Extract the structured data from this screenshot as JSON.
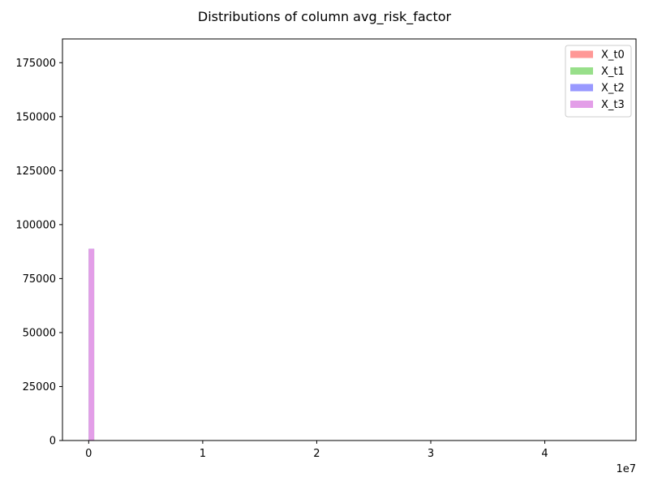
{
  "chart_data": {
    "type": "bar",
    "title": "Distributions of column avg_risk_factor",
    "xlabel": "",
    "ylabel": "",
    "x_offset_label": "1e7",
    "x_ticks": [
      0,
      1,
      2,
      3,
      4
    ],
    "x_tick_labels": [
      "0",
      "1",
      "2",
      "3",
      "4"
    ],
    "xlim": [
      -0.23,
      4.8
    ],
    "y_ticks": [
      0,
      25000,
      50000,
      75000,
      100000,
      125000,
      150000,
      175000
    ],
    "y_tick_labels": [
      "0",
      "25000",
      "50000",
      "75000",
      "100000",
      "125000",
      "150000",
      "175000"
    ],
    "ylim": [
      0,
      186000
    ],
    "grid": false,
    "legend_position": "top-right",
    "series": [
      {
        "name": "X_t0",
        "color": "#ff9896",
        "bins": [
          {
            "x0": 0.0,
            "x1": 0.048,
            "count": 88800
          }
        ]
      },
      {
        "name": "X_t1",
        "color": "#98df8a",
        "bins": [
          {
            "x0": 0.0,
            "x1": 0.048,
            "count": 88800
          }
        ]
      },
      {
        "name": "X_t2",
        "color": "#9999ff",
        "bins": [
          {
            "x0": 0.0,
            "x1": 0.048,
            "count": 88800
          }
        ]
      },
      {
        "name": "X_t3",
        "color": "#e39ee8",
        "bins": [
          {
            "x0": 0.0,
            "x1": 0.048,
            "count": 88800
          }
        ]
      }
    ]
  }
}
